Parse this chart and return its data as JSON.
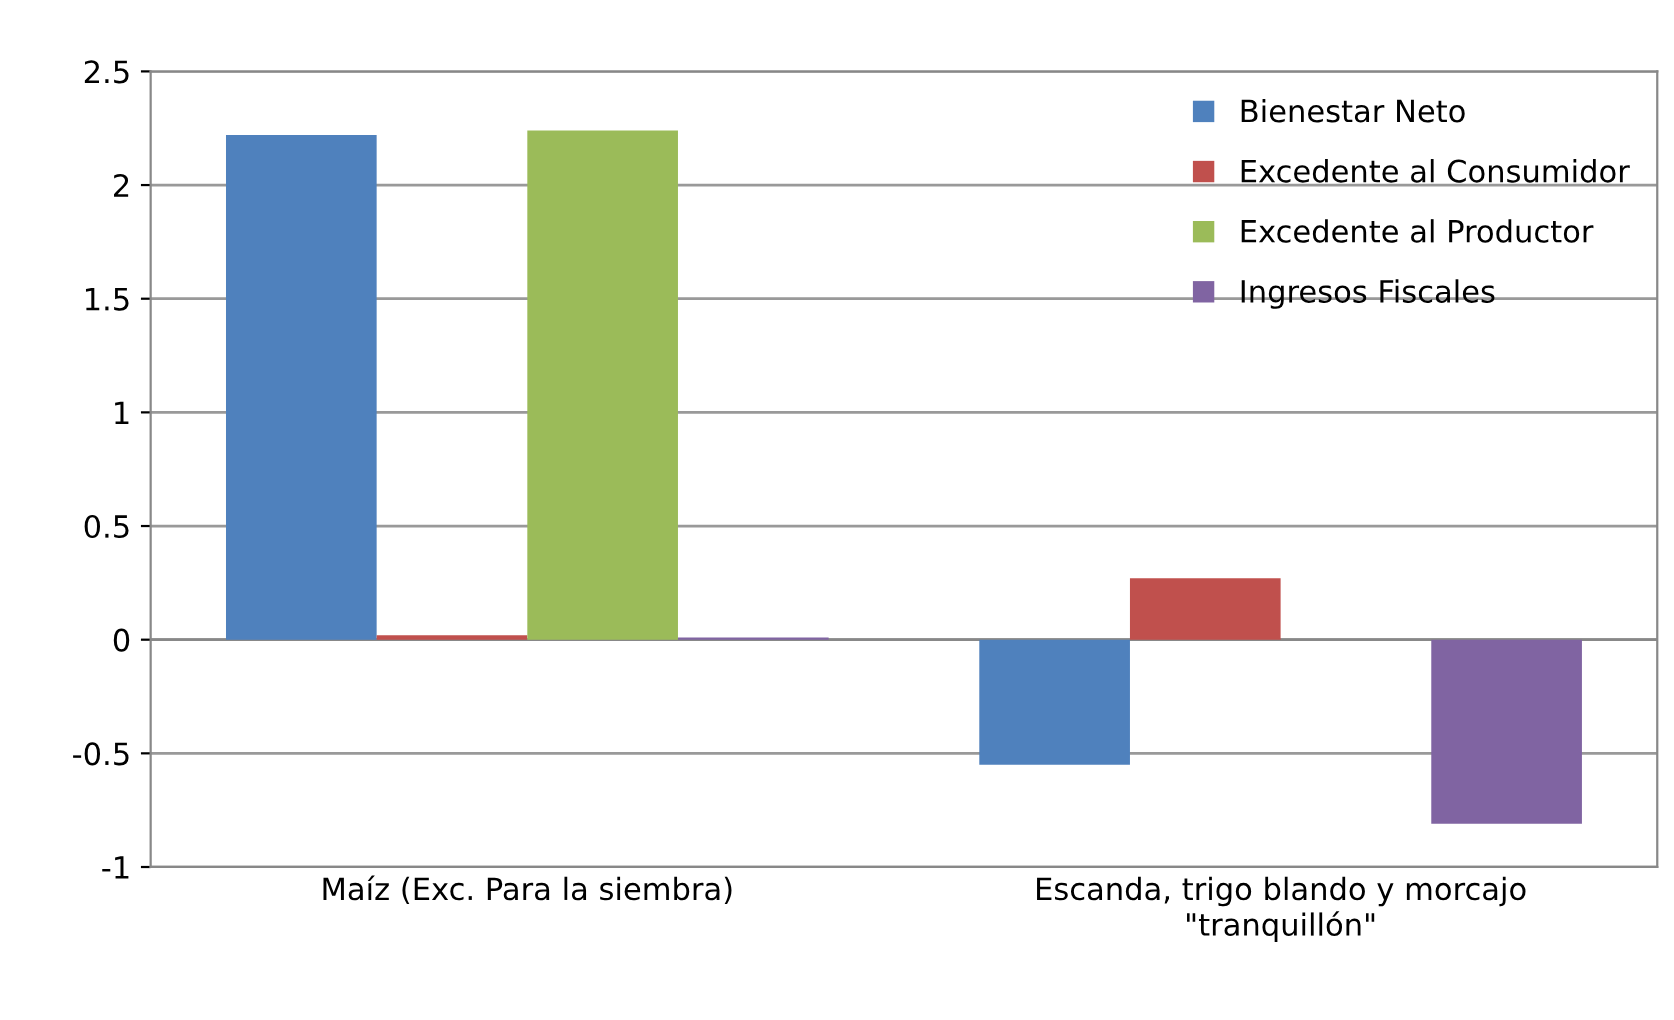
{
  "chart_data": {
    "type": "bar",
    "categories": [
      "Maíz (Exc. Para la siembra)",
      "Escanda, trigo blando y morcajo\n\"tranquillón\""
    ],
    "series": [
      {
        "name": "Bienestar Neto",
        "color": "#4f81bd",
        "values": [
          2.22,
          -0.55
        ]
      },
      {
        "name": "Excedente al Consumidor",
        "color": "#c0504d",
        "values": [
          0.02,
          0.27
        ]
      },
      {
        "name": "Excedente al Productor",
        "color": "#9bbb59",
        "values": [
          2.24,
          0
        ]
      },
      {
        "name": "Ingresos Fiscales",
        "color": "#8064a2",
        "values": [
          0.01,
          -0.81
        ]
      }
    ],
    "ylim": [
      -1,
      2.5
    ],
    "yticks": [
      {
        "value": -1,
        "label": "-1"
      },
      {
        "value": -0.5,
        "label": "-0.5"
      },
      0,
      0.5,
      1,
      1.5,
      2,
      2.5
    ],
    "grid": "y",
    "legend": "top right"
  }
}
